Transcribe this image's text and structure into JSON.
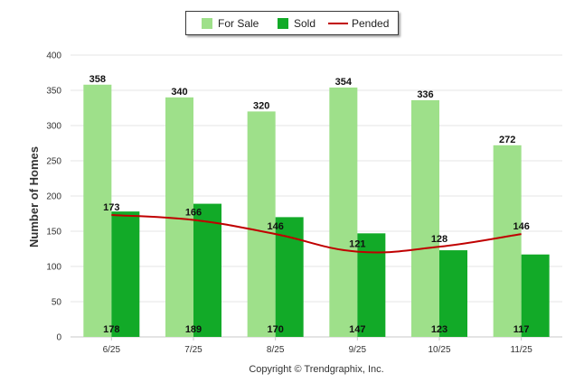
{
  "chart_data": {
    "type": "bar",
    "categories": [
      "6/25",
      "7/25",
      "8/25",
      "9/25",
      "10/25",
      "11/25"
    ],
    "series": [
      {
        "name": "For Sale",
        "kind": "bar",
        "color": "#9ee08a",
        "values": [
          358,
          340,
          320,
          354,
          336,
          272
        ]
      },
      {
        "name": "Sold",
        "kind": "bar",
        "color": "#12aa28",
        "values": [
          178,
          189,
          170,
          147,
          123,
          117
        ]
      },
      {
        "name": "Pended",
        "kind": "line",
        "color": "#c00000",
        "values": [
          173,
          166,
          146,
          121,
          128,
          146
        ]
      }
    ],
    "ylabel": "Number of Homes",
    "xlabel": "",
    "ylim": [
      0,
      400
    ],
    "yticks": [
      0,
      50,
      100,
      150,
      200,
      250,
      300,
      350,
      400
    ],
    "grid": true,
    "legend_position": "top-center"
  },
  "footer": {
    "copyright": "Copyright © Trendgraphix, Inc."
  }
}
